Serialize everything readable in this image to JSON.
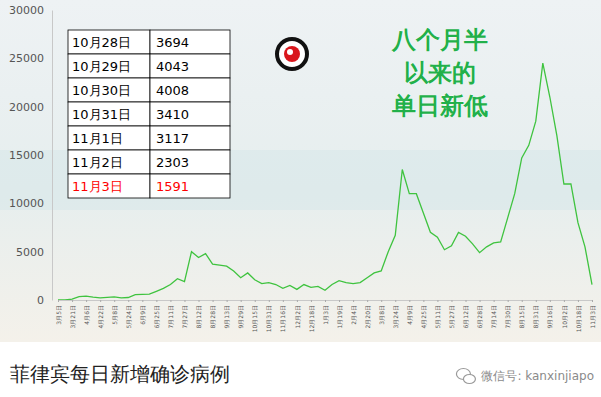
{
  "chart_data": {
    "type": "line",
    "title": "菲律宾每日新增确诊病例",
    "annotation": [
      "八个月半",
      "以来的",
      "单日新低"
    ],
    "color": "#3fc33f",
    "categories": [
      "3月5日",
      null,
      "3月21日",
      null,
      "4月6日",
      null,
      "4月22日",
      null,
      "5月8日",
      null,
      "5月24日",
      null,
      "6月9日",
      null,
      "6月25日",
      null,
      "7月11日",
      null,
      "7月27日",
      null,
      "8月12日",
      null,
      "8月28日",
      null,
      "9月13日",
      null,
      "9月29日",
      null,
      "10月15日",
      null,
      "10月31日",
      null,
      "11月16日",
      null,
      "12月2日",
      null,
      "12月18日",
      null,
      "1月3日",
      null,
      "1月19日",
      null,
      "2月4日",
      null,
      "2月20日",
      null,
      "3月8日",
      null,
      "3月24日",
      null,
      "4月9日",
      null,
      "4月25日",
      null,
      "5月11日",
      null,
      "5月27日",
      null,
      "6月12日",
      null,
      "6月28日",
      null,
      "7月14日",
      null,
      "7月30日",
      null,
      "8月15日",
      null,
      "8月31日",
      null,
      "9月16日",
      null,
      "10月2日",
      null,
      "10月18日",
      null,
      "11月3日"
    ],
    "values": [
      0,
      20,
      80,
      340,
      400,
      290,
      210,
      280,
      320,
      210,
      260,
      550,
      580,
      600,
      900,
      1200,
      1600,
      2200,
      1900,
      5000,
      4400,
      4800,
      3700,
      3600,
      3500,
      3000,
      2300,
      2800,
      2100,
      1700,
      1800,
      1600,
      1200,
      1500,
      1100,
      1600,
      1300,
      1400,
      1000,
      1600,
      2000,
      1800,
      1700,
      1800,
      2300,
      2800,
      3000,
      5000,
      6700,
      13500,
      11000,
      11000,
      9000,
      7000,
      6500,
      5200,
      5600,
      7000,
      6600,
      5800,
      4900,
      5500,
      5900,
      6000,
      8500,
      11000,
      14700,
      16000,
      18500,
      24500,
      21000,
      17000,
      12000,
      12000,
      8000,
      5500,
      1591
    ],
    "ylim": [
      0,
      30000
    ],
    "yticks": [
      0,
      5000,
      10000,
      15000,
      20000,
      25000,
      30000
    ],
    "grid": false
  },
  "inset_table": {
    "rows": [
      {
        "date": "10月28日",
        "value": 3694,
        "color": "#000000"
      },
      {
        "date": "10月29日",
        "value": 4043,
        "color": "#000000"
      },
      {
        "date": "10月30日",
        "value": 4008,
        "color": "#000000"
      },
      {
        "date": "10月31日",
        "value": 3410,
        "color": "#000000"
      },
      {
        "date": "11月1日",
        "value": 3117,
        "color": "#000000"
      },
      {
        "date": "11月2日",
        "value": 2303,
        "color": "#000000"
      },
      {
        "date": "11月3日",
        "value": 1591,
        "color": "#ff0000"
      }
    ]
  },
  "source": "微信号: kanxinjiapo"
}
